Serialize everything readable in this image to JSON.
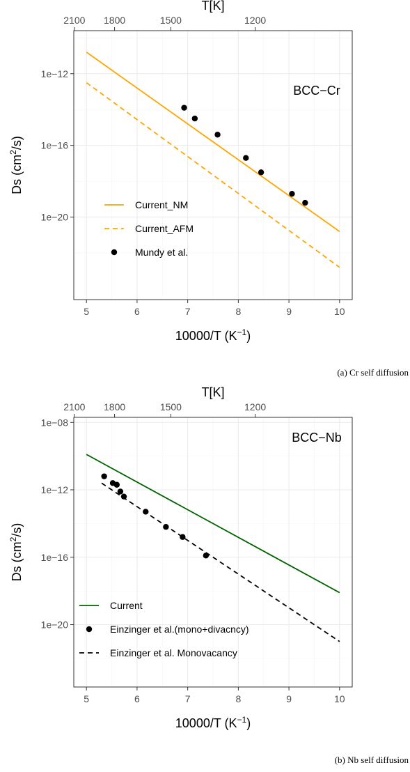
{
  "captions": [
    "(a) Cr self diffusion",
    "(b) Nb self diffusion"
  ],
  "chart_data": [
    {
      "type": "line",
      "label": "BCC−Cr",
      "xlabel": "10000/T (K",
      "xlabel_sup": "−1",
      "xlabel_close": ")",
      "ylabel": "Ds (cm",
      "ylabel_sup": "2",
      "ylabel_close": "/s)",
      "top_axis_title": "T[K]",
      "xlim": [
        4.75,
        10.25
      ],
      "ylim_log10": [
        -24.6,
        -9.6
      ],
      "x_ticks": [
        "5",
        "6",
        "7",
        "8",
        "9",
        "10"
      ],
      "y_ticks": [
        {
          "label": "1e−12",
          "log10": -12
        },
        {
          "label": "1e−16",
          "log10": -16
        },
        {
          "label": "1e−20",
          "log10": -20
        }
      ],
      "top_ticks": [
        "2100",
        "1800",
        "1500",
        "1200"
      ],
      "grid": true,
      "legend_position": "bottom-left",
      "series": [
        {
          "name": "Current_NM",
          "kind": "line",
          "color": "#ffa500",
          "dash": "solid",
          "x": [
            5,
            10
          ],
          "log10_y": [
            -10.8,
            -20.8
          ]
        },
        {
          "name": "Current_AFM",
          "kind": "line",
          "color": "#ffa500",
          "dash": "dashed",
          "x": [
            5,
            10
          ],
          "log10_y": [
            -12.5,
            -22.8
          ]
        },
        {
          "name": "Mundy et al.",
          "kind": "points",
          "color": "#000000",
          "x": [
            6.93,
            7.14,
            7.59,
            8.15,
            8.45,
            9.06,
            9.32
          ],
          "log10_y": [
            -13.9,
            -14.5,
            -15.4,
            -16.7,
            -17.5,
            -18.7,
            -19.2
          ]
        }
      ]
    },
    {
      "type": "line",
      "label": "BCC−Nb",
      "xlabel": "10000/T (K",
      "xlabel_sup": "−1",
      "xlabel_close": ")",
      "ylabel": "Ds (cm",
      "ylabel_sup": "2",
      "ylabel_close": "/s)",
      "top_axis_title": "T[K]",
      "xlim": [
        4.75,
        10.25
      ],
      "ylim_log10": [
        -23.7,
        -7.7
      ],
      "x_ticks": [
        "5",
        "6",
        "7",
        "8",
        "9",
        "10"
      ],
      "y_ticks": [
        {
          "label": "1e−08",
          "log10": -8
        },
        {
          "label": "1e−12",
          "log10": -12
        },
        {
          "label": "1e−16",
          "log10": -16
        },
        {
          "label": "1e−20",
          "log10": -20
        }
      ],
      "top_ticks": [
        "2100",
        "1800",
        "1500",
        "1200"
      ],
      "grid": true,
      "legend_position": "bottom-left",
      "series": [
        {
          "name": "Current",
          "kind": "line",
          "color": "#006400",
          "dash": "solid",
          "x": [
            5,
            10
          ],
          "log10_y": [
            -9.9,
            -18.1
          ]
        },
        {
          "name": "Einzinger et al.(mono+divacncy)",
          "kind": "points",
          "color": "#000000",
          "x": [
            5.35,
            5.52,
            5.6,
            5.67,
            5.74,
            6.17,
            6.57,
            6.9,
            7.36
          ],
          "log10_y": [
            -11.2,
            -11.6,
            -11.7,
            -12.1,
            -12.4,
            -13.3,
            -14.2,
            -14.8,
            -15.9
          ]
        },
        {
          "name": "Einzinger et al. Monovacancy",
          "kind": "line",
          "color": "#000000",
          "dash": "dashed",
          "x": [
            5.3,
            10
          ],
          "log10_y": [
            -11.6,
            -21.0
          ]
        }
      ]
    }
  ]
}
